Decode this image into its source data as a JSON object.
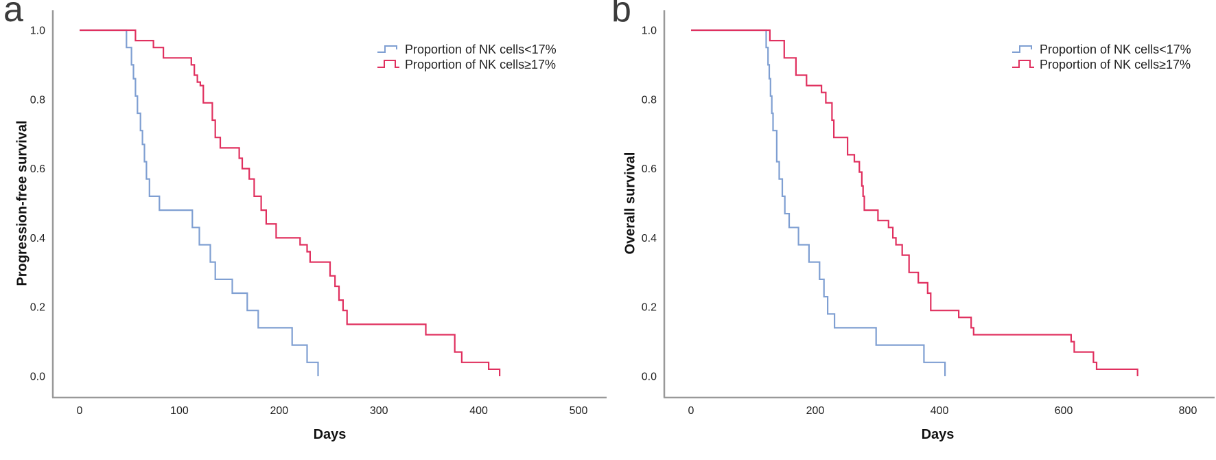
{
  "figure": {
    "type": "kaplan-meier-survival-figure",
    "background": "#ffffff",
    "axis_color": "#999999",
    "text_color": "#1f1f1f"
  },
  "chart_data": [
    {
      "type": "line",
      "style": "kaplan-meier-step",
      "panel_label": "a",
      "title": "",
      "xlabel": "Days",
      "ylabel": "Progression-free survival",
      "xlim": [
        0,
        500
      ],
      "ylim": [
        0.0,
        1.0
      ],
      "x_ticks": [
        0,
        100,
        200,
        300,
        400,
        500
      ],
      "y_ticks": [
        1.0,
        0.8,
        0.6,
        0.4,
        0.2,
        0.0
      ],
      "grid": false,
      "legend_position": "top-right",
      "series": [
        {
          "name": "Proportion of NK cells<17%",
          "color": "#7f9fd2",
          "points": [
            [
              0,
              1.0
            ],
            [
              47,
              0.95
            ],
            [
              52,
              0.9
            ],
            [
              54,
              0.86
            ],
            [
              56,
              0.81
            ],
            [
              58,
              0.76
            ],
            [
              61,
              0.71
            ],
            [
              63,
              0.67
            ],
            [
              65,
              0.62
            ],
            [
              67,
              0.57
            ],
            [
              70,
              0.52
            ],
            [
              80,
              0.48
            ],
            [
              113,
              0.43
            ],
            [
              120,
              0.38
            ],
            [
              131,
              0.33
            ],
            [
              136,
              0.28
            ],
            [
              153,
              0.24
            ],
            [
              168,
              0.19
            ],
            [
              179,
              0.14
            ],
            [
              213,
              0.09
            ],
            [
              228,
              0.04
            ],
            [
              239,
              0.0
            ]
          ]
        },
        {
          "name": "Proportion of NK cells≥17%",
          "color": "#e0305f",
          "points": [
            [
              0,
              1.0
            ],
            [
              56,
              0.97
            ],
            [
              74,
              0.95
            ],
            [
              84,
              0.92
            ],
            [
              112,
              0.9
            ],
            [
              115,
              0.87
            ],
            [
              118,
              0.85
            ],
            [
              121,
              0.84
            ],
            [
              124,
              0.79
            ],
            [
              133,
              0.74
            ],
            [
              136,
              0.69
            ],
            [
              141,
              0.66
            ],
            [
              160,
              0.63
            ],
            [
              163,
              0.6
            ],
            [
              170,
              0.57
            ],
            [
              175,
              0.52
            ],
            [
              182,
              0.48
            ],
            [
              187,
              0.44
            ],
            [
              197,
              0.4
            ],
            [
              221,
              0.38
            ],
            [
              228,
              0.36
            ],
            [
              231,
              0.33
            ],
            [
              251,
              0.29
            ],
            [
              256,
              0.26
            ],
            [
              260,
              0.22
            ],
            [
              264,
              0.19
            ],
            [
              268,
              0.15
            ],
            [
              347,
              0.12
            ],
            [
              376,
              0.07
            ],
            [
              383,
              0.04
            ],
            [
              410,
              0.02
            ],
            [
              421,
              0.0
            ]
          ]
        }
      ]
    },
    {
      "type": "line",
      "style": "kaplan-meier-step",
      "panel_label": "b",
      "title": "",
      "xlabel": "Days",
      "ylabel": "Overall survival",
      "xlim": [
        0,
        800
      ],
      "ylim": [
        0.0,
        1.0
      ],
      "x_ticks": [
        0,
        200,
        400,
        600,
        800
      ],
      "y_ticks": [
        1.0,
        0.8,
        0.6,
        0.4,
        0.2,
        0.0
      ],
      "grid": false,
      "legend_position": "top-right",
      "series": [
        {
          "name": "Proportion of NK cells<17%",
          "color": "#7f9fd2",
          "points": [
            [
              0,
              1.0
            ],
            [
              121,
              0.95
            ],
            [
              124,
              0.9
            ],
            [
              126,
              0.86
            ],
            [
              128,
              0.81
            ],
            [
              130,
              0.76
            ],
            [
              132,
              0.71
            ],
            [
              138,
              0.62
            ],
            [
              142,
              0.57
            ],
            [
              147,
              0.52
            ],
            [
              151,
              0.47
            ],
            [
              158,
              0.43
            ],
            [
              173,
              0.38
            ],
            [
              190,
              0.33
            ],
            [
              207,
              0.28
            ],
            [
              214,
              0.23
            ],
            [
              220,
              0.18
            ],
            [
              231,
              0.14
            ],
            [
              298,
              0.09
            ],
            [
              375,
              0.04
            ],
            [
              409,
              0.0
            ]
          ]
        },
        {
          "name": "Proportion of NK cells≥17%",
          "color": "#e0305f",
          "points": [
            [
              0,
              1.0
            ],
            [
              127,
              0.97
            ],
            [
              150,
              0.92
            ],
            [
              169,
              0.87
            ],
            [
              186,
              0.84
            ],
            [
              210,
              0.82
            ],
            [
              217,
              0.79
            ],
            [
              227,
              0.74
            ],
            [
              230,
              0.69
            ],
            [
              252,
              0.64
            ],
            [
              263,
              0.62
            ],
            [
              271,
              0.59
            ],
            [
              275,
              0.55
            ],
            [
              277,
              0.52
            ],
            [
              279,
              0.48
            ],
            [
              301,
              0.45
            ],
            [
              318,
              0.43
            ],
            [
              325,
              0.4
            ],
            [
              330,
              0.38
            ],
            [
              340,
              0.35
            ],
            [
              351,
              0.3
            ],
            [
              366,
              0.27
            ],
            [
              381,
              0.24
            ],
            [
              386,
              0.19
            ],
            [
              431,
              0.17
            ],
            [
              451,
              0.14
            ],
            [
              455,
              0.12
            ],
            [
              612,
              0.1
            ],
            [
              617,
              0.07
            ],
            [
              648,
              0.04
            ],
            [
              653,
              0.02
            ],
            [
              719,
              0.0
            ]
          ]
        }
      ]
    }
  ]
}
